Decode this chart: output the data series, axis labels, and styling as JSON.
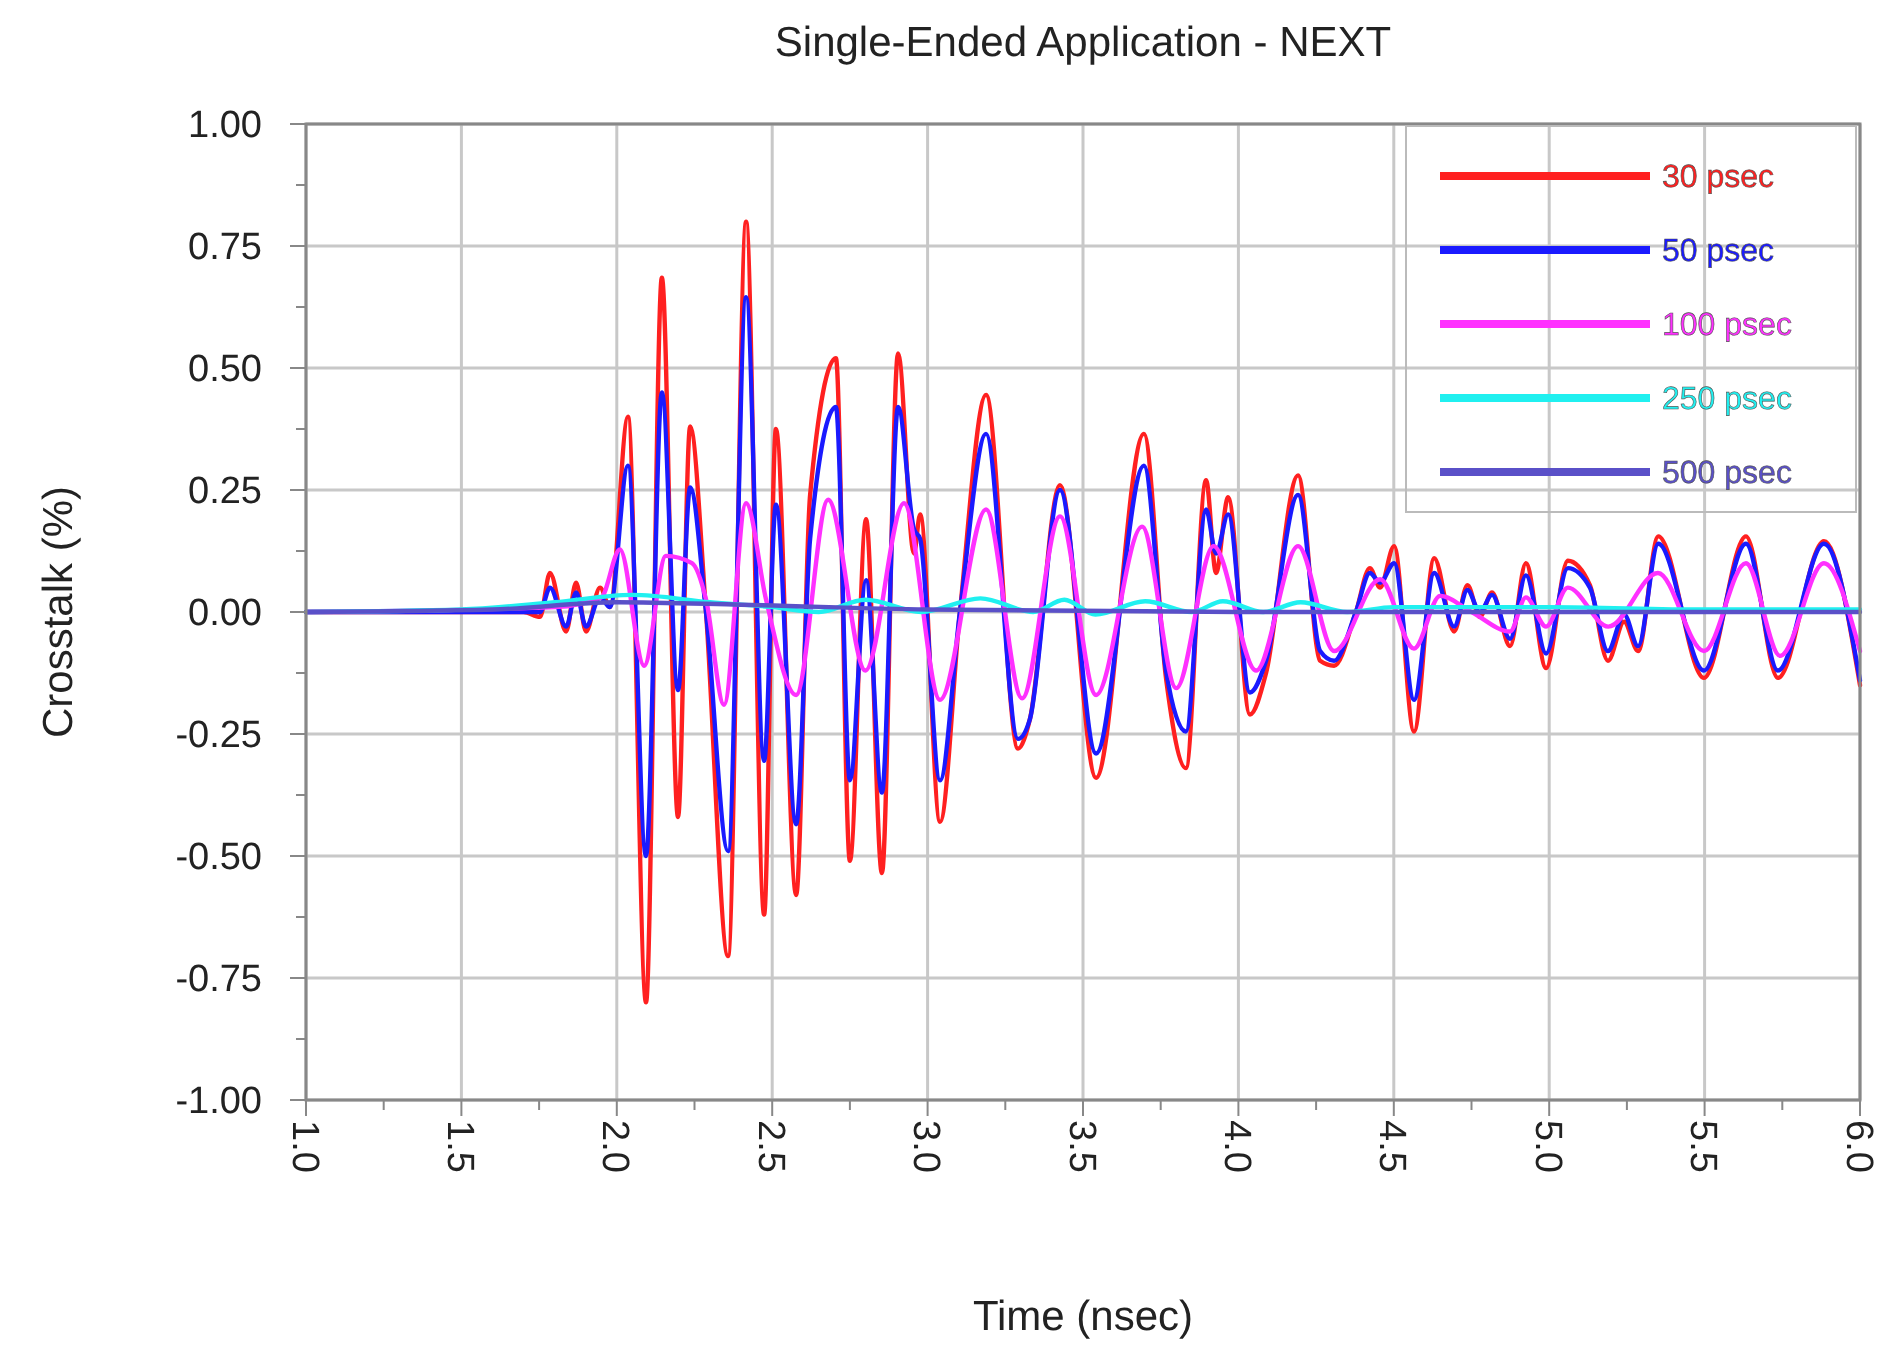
{
  "chart_data": {
    "type": "line",
    "title": "Single-Ended Application - NEXT",
    "xlabel": "Time (nsec)",
    "ylabel": "Crosstalk (%)",
    "xlim": [
      1.0,
      6.0
    ],
    "xticks": [
      {
        "value": 1.0,
        "label": "1.0"
      },
      {
        "value": 1.25,
        "label": null
      },
      {
        "value": 1.5,
        "label": "1.5"
      },
      {
        "value": 1.75,
        "label": null
      },
      {
        "value": 2.0,
        "label": "2.0"
      },
      {
        "value": 2.25,
        "label": null
      },
      {
        "value": 2.5,
        "label": "2.5"
      },
      {
        "value": 2.75,
        "label": null
      },
      {
        "value": 3.0,
        "label": "3.0"
      },
      {
        "value": 3.25,
        "label": null
      },
      {
        "value": 3.5,
        "label": "3.5"
      },
      {
        "value": 3.75,
        "label": null
      },
      {
        "value": 4.0,
        "label": "4.0"
      },
      {
        "value": 4.25,
        "label": null
      },
      {
        "value": 4.5,
        "label": "4.5"
      },
      {
        "value": 4.75,
        "label": null
      },
      {
        "value": 5.0,
        "label": "5.0"
      },
      {
        "value": 5.25,
        "label": null
      },
      {
        "value": 5.5,
        "label": "5.5"
      },
      {
        "value": 5.75,
        "label": null
      },
      {
        "value": 6.0,
        "label": "6.0"
      }
    ],
    "ylim": [
      -1.0,
      1.0
    ],
    "yticks": [
      {
        "value": -1.0,
        "label": "-1.00"
      },
      {
        "value": -0.875,
        "label": null
      },
      {
        "value": -0.75,
        "label": "-0.75"
      },
      {
        "value": -0.625,
        "label": null
      },
      {
        "value": -0.5,
        "label": "-0.50"
      },
      {
        "value": -0.375,
        "label": null
      },
      {
        "value": -0.25,
        "label": "-0.25"
      },
      {
        "value": -0.125,
        "label": null
      },
      {
        "value": 0,
        "label": "0.00"
      },
      {
        "value": 0.125,
        "label": null
      },
      {
        "value": 0.25,
        "label": "0.25"
      },
      {
        "value": 0.375,
        "label": null
      },
      {
        "value": 0.5,
        "label": "0.50"
      },
      {
        "value": 0.625,
        "label": null
      },
      {
        "value": 0.75,
        "label": "0.75"
      },
      {
        "value": 0.875,
        "label": null
      },
      {
        "value": 1.0,
        "label": "1.00"
      }
    ],
    "grid": true,
    "legend": "top right",
    "line_style": "solid",
    "marker": "none",
    "series": [
      {
        "name": "30 psec",
        "color": "#ff2020",
        "x": [
          1.0,
          1.7,
          1.753,
          1.785,
          1.837,
          1.869,
          1.901,
          1.946,
          1.978,
          2.036,
          2.094,
          2.145,
          2.197,
          2.236,
          2.287,
          2.358,
          2.416,
          2.474,
          2.512,
          2.577,
          2.622,
          2.705,
          2.75,
          2.802,
          2.853,
          2.905,
          2.956,
          2.976,
          3.04,
          3.104,
          3.188,
          3.291,
          3.329,
          3.426,
          3.542,
          3.696,
          3.767,
          3.831,
          3.896,
          3.928,
          3.967,
          4.037,
          4.089,
          4.192,
          4.263,
          4.308,
          4.378,
          4.423,
          4.456,
          4.501,
          4.565,
          4.63,
          4.694,
          4.737,
          4.777,
          4.816,
          4.874,
          4.925,
          4.99,
          5.06,
          5.131,
          5.189,
          5.241,
          5.286,
          5.351,
          5.498,
          5.633,
          5.736,
          5.884,
          6.0
        ],
        "values": [
          0,
          0,
          -0.01,
          0.08,
          -0.04,
          0.06,
          -0.04,
          0.05,
          0.01,
          0.4,
          -0.8,
          0.685,
          -0.42,
          0.38,
          0.0,
          -0.705,
          0.8,
          -0.62,
          0.375,
          -0.58,
          0.24,
          0.52,
          -0.51,
          0.19,
          -0.535,
          0.53,
          0.12,
          0.2,
          -0.43,
          0.0,
          0.445,
          -0.28,
          -0.22,
          0.26,
          -0.34,
          0.365,
          -0.135,
          -0.32,
          0.27,
          0.08,
          0.235,
          -0.21,
          -0.125,
          0.28,
          -0.1,
          -0.11,
          0.0,
          0.09,
          0.05,
          0.135,
          -0.245,
          0.11,
          -0.04,
          0.055,
          -0.01,
          0.04,
          -0.07,
          0.1,
          -0.115,
          0.105,
          0.055,
          -0.1,
          -0.02,
          -0.08,
          0.155,
          -0.135,
          0.155,
          -0.135,
          0.145,
          -0.15
        ]
      },
      {
        "name": "50 psec",
        "color": "#1a1aff",
        "x": [
          1.0,
          1.7,
          1.753,
          1.785,
          1.837,
          1.869,
          1.901,
          1.946,
          1.978,
          2.036,
          2.094,
          2.145,
          2.197,
          2.236,
          2.287,
          2.358,
          2.416,
          2.474,
          2.512,
          2.577,
          2.622,
          2.705,
          2.75,
          2.802,
          2.853,
          2.905,
          2.956,
          2.976,
          3.04,
          3.104,
          3.188,
          3.291,
          3.329,
          3.426,
          3.542,
          3.696,
          3.767,
          3.831,
          3.896,
          3.928,
          3.967,
          4.037,
          4.089,
          4.192,
          4.263,
          4.308,
          4.378,
          4.423,
          4.456,
          4.501,
          4.565,
          4.63,
          4.694,
          4.737,
          4.777,
          4.816,
          4.874,
          4.925,
          4.99,
          5.06,
          5.131,
          5.189,
          5.241,
          5.286,
          5.351,
          5.498,
          5.633,
          5.736,
          5.884,
          6.0
        ],
        "values": [
          0,
          0,
          0,
          0.05,
          -0.03,
          0.04,
          -0.03,
          0.03,
          0.01,
          0.3,
          -0.5,
          0.45,
          -0.16,
          0.255,
          0.0,
          -0.49,
          0.645,
          -0.305,
          0.22,
          -0.435,
          0.15,
          0.42,
          -0.345,
          0.065,
          -0.37,
          0.42,
          0.17,
          0.15,
          -0.345,
          0.0,
          0.365,
          -0.26,
          -0.22,
          0.25,
          -0.29,
          0.3,
          -0.12,
          -0.245,
          0.21,
          0.12,
          0.2,
          -0.165,
          -0.1,
          0.24,
          -0.08,
          -0.1,
          0.0,
          0.08,
          0.06,
          0.1,
          -0.18,
          0.08,
          -0.03,
          0.045,
          0.0,
          0.035,
          -0.055,
          0.075,
          -0.085,
          0.09,
          0.05,
          -0.08,
          -0.005,
          -0.07,
          0.14,
          -0.12,
          0.14,
          -0.12,
          0.14,
          -0.14
        ]
      },
      {
        "name": "100 psec",
        "color": "#ff30ff",
        "x": [
          1.0,
          1.8,
          1.95,
          2.01,
          2.088,
          2.158,
          2.242,
          2.287,
          2.345,
          2.416,
          2.48,
          2.577,
          2.68,
          2.8,
          2.924,
          3.04,
          3.188,
          3.304,
          3.426,
          3.542,
          3.69,
          3.8,
          3.92,
          4.057,
          4.192,
          4.308,
          4.456,
          4.565,
          4.649,
          4.75,
          4.874,
          4.925,
          4.99,
          5.06,
          5.19,
          5.35,
          5.498,
          5.633,
          5.743,
          5.884,
          6.0
        ],
        "values": [
          0,
          0.01,
          0.03,
          0.128,
          -0.11,
          0.115,
          0.1,
          0.026,
          -0.19,
          0.223,
          0.026,
          -0.17,
          0.23,
          -0.12,
          0.223,
          -0.18,
          0.21,
          -0.177,
          0.196,
          -0.17,
          0.175,
          -0.156,
          0.135,
          -0.12,
          0.135,
          -0.08,
          0.067,
          -0.075,
          0.033,
          0.0,
          -0.04,
          0.03,
          -0.03,
          0.05,
          -0.03,
          0.08,
          -0.08,
          0.1,
          -0.09,
          0.1,
          -0.08
        ]
      },
      {
        "name": "250 psec",
        "color": "#20f0f0",
        "x": [
          1.0,
          1.5,
          1.8,
          2.05,
          2.3,
          2.5,
          2.65,
          2.8,
          2.98,
          3.17,
          3.34,
          3.44,
          3.54,
          3.7,
          3.85,
          3.95,
          4.08,
          4.2,
          4.35,
          4.5,
          5.0,
          5.5,
          6.0
        ],
        "values": [
          0,
          0.005,
          0.02,
          0.035,
          0.02,
          0.01,
          0.0,
          0.025,
          0.0,
          0.028,
          0.0,
          0.025,
          -0.005,
          0.022,
          0.0,
          0.022,
          0.0,
          0.02,
          0.0,
          0.01,
          0.01,
          0.005,
          0.005
        ]
      },
      {
        "name": "500 psec",
        "color": "#5a50c8",
        "x": [
          1.0,
          1.6,
          2.0,
          2.4,
          3.0,
          4.0,
          5.0,
          6.0
        ],
        "values": [
          0,
          0.005,
          0.02,
          0.015,
          0.005,
          0.0,
          0.0,
          0.0
        ]
      }
    ]
  }
}
